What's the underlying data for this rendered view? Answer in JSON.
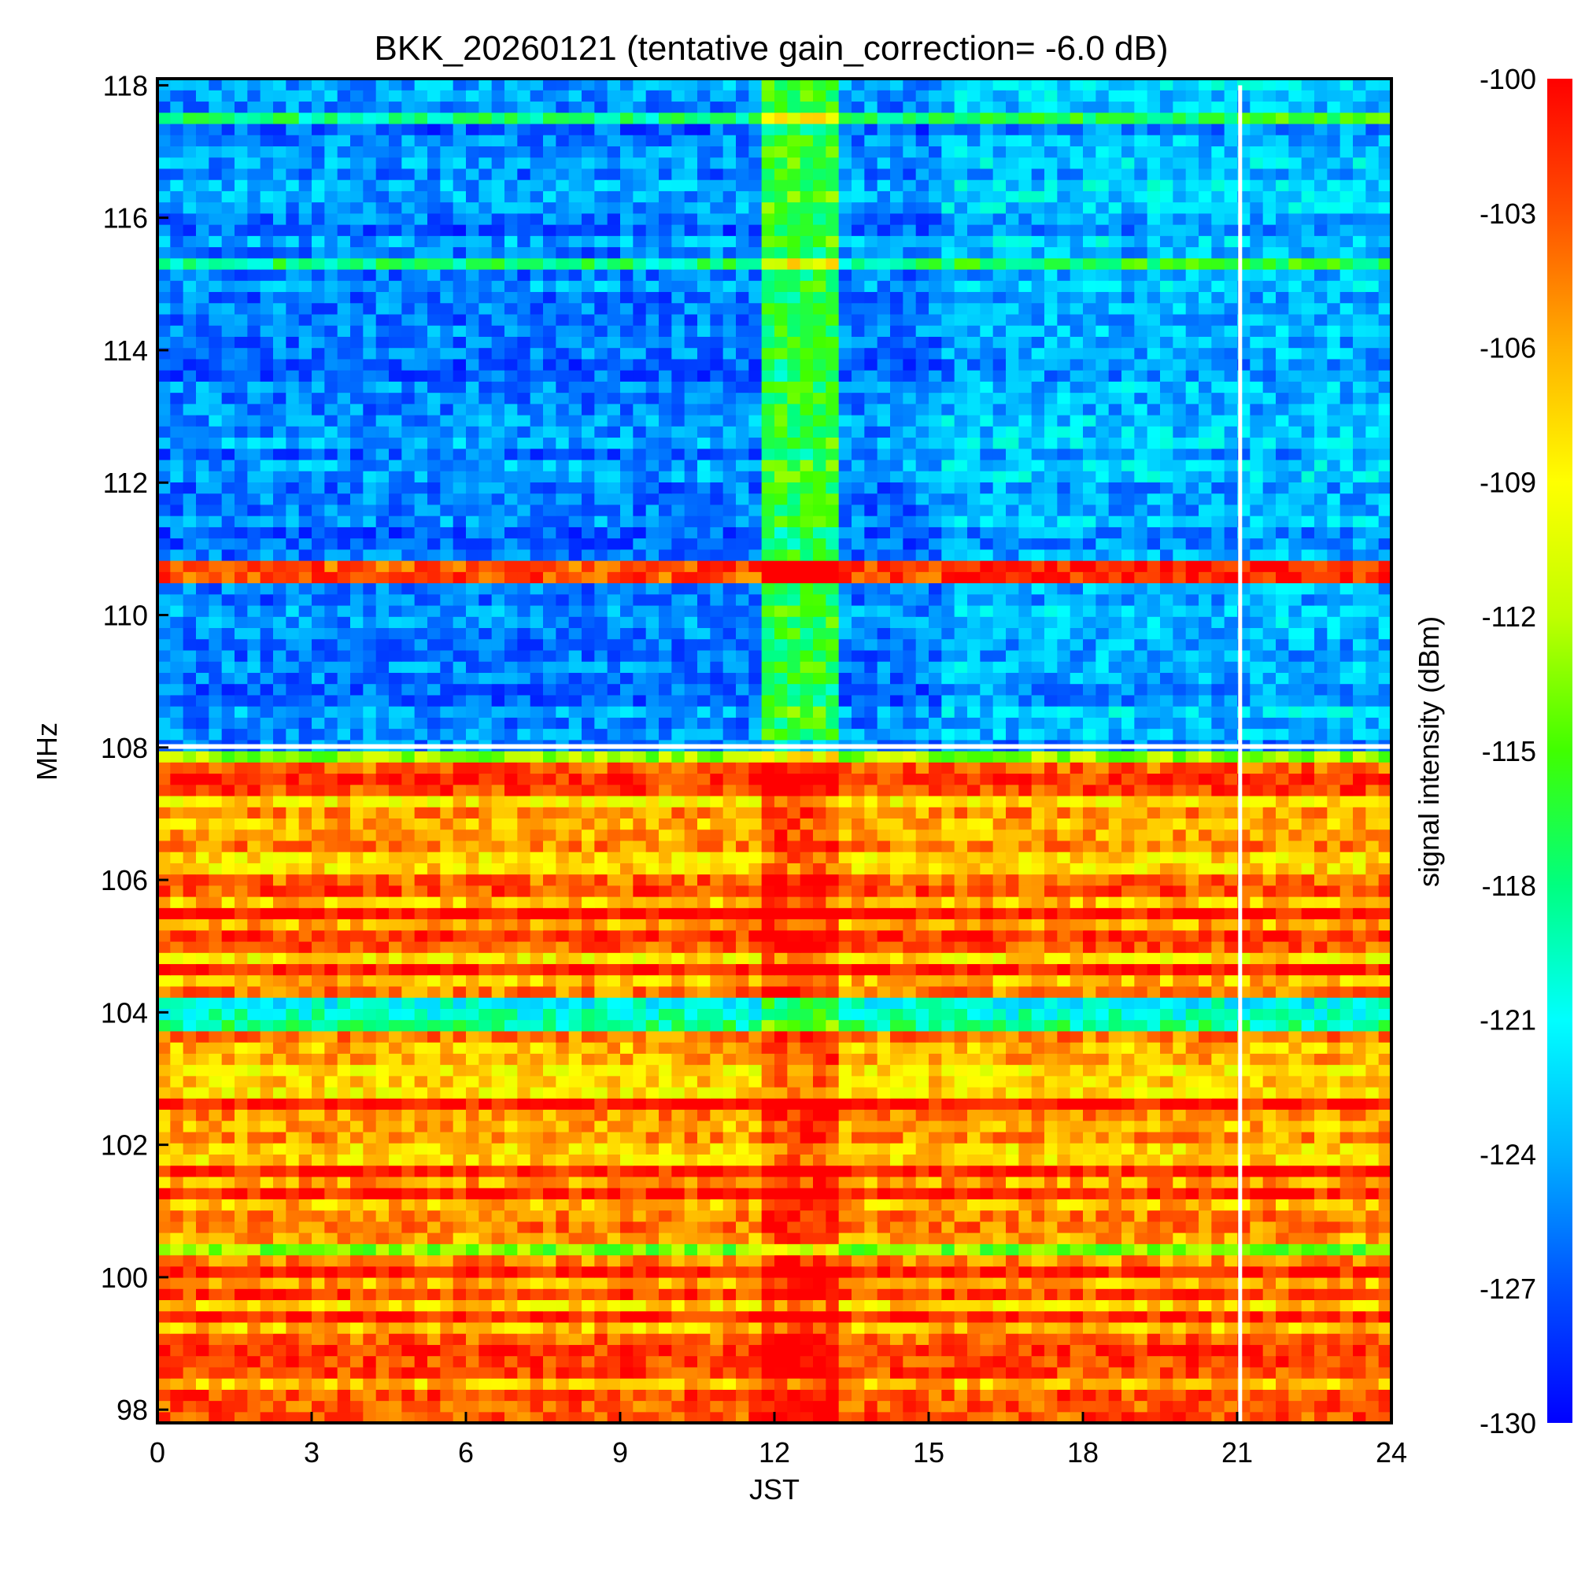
{
  "chart_data": {
    "type": "heatmap",
    "title": "BKK_20260121 (tentative gain_correction= -6.0 dB)",
    "xlabel": "JST",
    "ylabel": "MHz",
    "colorbar_label": "signal intensity (dBm)",
    "xlim": [
      0,
      24
    ],
    "ylim": [
      97.8,
      118.1
    ],
    "clim": [
      -130,
      -100
    ],
    "x_ticks": [
      0,
      3,
      6,
      9,
      12,
      15,
      18,
      21,
      24
    ],
    "y_ticks": [
      98,
      100,
      102,
      104,
      106,
      108,
      110,
      112,
      114,
      116,
      118
    ],
    "colorbar_ticks": [
      -100,
      -103,
      -106,
      -109,
      -112,
      -115,
      -118,
      -121,
      -124,
      -127,
      -130
    ],
    "colormap": [
      "#0000ff",
      "#0050ff",
      "#00b0ff",
      "#00ffff",
      "#00ff80",
      "#40ff00",
      "#c0ff00",
      "#ffff00",
      "#ffb000",
      "#ff5000",
      "#ff0000"
    ],
    "annotations": [
      "Elevated band near 11.5-13.1 JST across all frequencies",
      "Data gap (white vertical line) at about 21.05 JST",
      "Strong persistent signal near 110.6 MHz"
    ]
  }
}
